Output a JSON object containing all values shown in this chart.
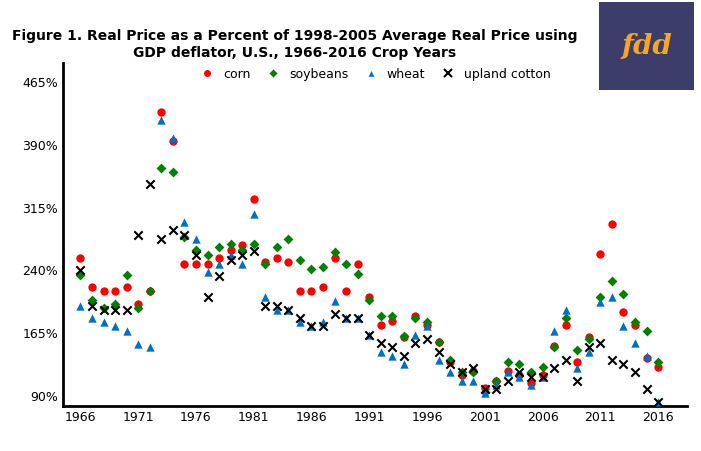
{
  "title": "Figure 1. Real Price as a Percent of 1998-2005 Average Real Price using\nGDP deflator, U.S., 1966-2016 Crop Years",
  "title_fontsize": 10,
  "fdd_box_color": "#3d3d6b",
  "fdd_text_color": "#f5a623",
  "corn_color": "#ff0000",
  "soybean_color": "#008000",
  "wheat_color": "#0070c0",
  "cotton_color": "#000000",
  "yticks": [
    90,
    165,
    240,
    315,
    390,
    465
  ],
  "ylim": [
    78,
    488
  ],
  "xlim": [
    1964.5,
    2018.5
  ],
  "xticks": [
    1966,
    1971,
    1976,
    1981,
    1986,
    1991,
    1996,
    2001,
    2006,
    2011,
    2016
  ],
  "corn": {
    "years": [
      1966,
      1967,
      1968,
      1969,
      1970,
      1971,
      1972,
      1973,
      1974,
      1975,
      1976,
      1977,
      1978,
      1979,
      1980,
      1981,
      1982,
      1983,
      1984,
      1985,
      1986,
      1987,
      1988,
      1989,
      1990,
      1991,
      1992,
      1993,
      1994,
      1995,
      1996,
      1997,
      1998,
      1999,
      2000,
      2001,
      2002,
      2003,
      2004,
      2005,
      2006,
      2007,
      2008,
      2009,
      2010,
      2011,
      2012,
      2013,
      2014,
      2015,
      2016
    ],
    "values": [
      255,
      220,
      215,
      215,
      220,
      200,
      215,
      430,
      395,
      248,
      248,
      248,
      255,
      265,
      270,
      325,
      250,
      255,
      250,
      215,
      215,
      220,
      255,
      215,
      248,
      208,
      175,
      180,
      160,
      185,
      175,
      155,
      130,
      115,
      120,
      100,
      108,
      120,
      115,
      105,
      115,
      150,
      175,
      130,
      160,
      260,
      295,
      190,
      175,
      135,
      125
    ]
  },
  "soybeans": {
    "years": [
      1966,
      1967,
      1968,
      1969,
      1970,
      1971,
      1972,
      1973,
      1974,
      1975,
      1976,
      1977,
      1978,
      1979,
      1980,
      1981,
      1982,
      1983,
      1984,
      1985,
      1986,
      1987,
      1988,
      1989,
      1990,
      1991,
      1992,
      1993,
      1994,
      1995,
      1996,
      1997,
      1998,
      1999,
      2000,
      2001,
      2002,
      2003,
      2004,
      2005,
      2006,
      2007,
      2008,
      2009,
      2010,
      2011,
      2012,
      2013,
      2014,
      2015,
      2016
    ],
    "values": [
      235,
      205,
      195,
      200,
      235,
      195,
      215,
      362,
      358,
      280,
      265,
      258,
      268,
      272,
      265,
      272,
      248,
      268,
      278,
      252,
      242,
      244,
      262,
      248,
      236,
      205,
      185,
      185,
      162,
      183,
      178,
      155,
      133,
      118,
      118,
      95,
      108,
      130,
      128,
      118,
      124,
      148,
      183,
      145,
      158,
      208,
      228,
      212,
      178,
      168,
      130
    ]
  },
  "wheat": {
    "years": [
      1966,
      1967,
      1968,
      1969,
      1970,
      1971,
      1972,
      1973,
      1974,
      1975,
      1976,
      1977,
      1978,
      1979,
      1980,
      1981,
      1982,
      1983,
      1984,
      1985,
      1986,
      1987,
      1988,
      1989,
      1990,
      1991,
      1992,
      1993,
      1994,
      1995,
      1996,
      1997,
      1998,
      1999,
      2000,
      2001,
      2002,
      2003,
      2004,
      2005,
      2006,
      2007,
      2008,
      2009,
      2010,
      2011,
      2012,
      2013,
      2014,
      2015,
      2016
    ],
    "values": [
      198,
      183,
      178,
      173,
      168,
      152,
      148,
      420,
      398,
      298,
      278,
      238,
      248,
      258,
      248,
      308,
      208,
      193,
      193,
      178,
      173,
      178,
      203,
      183,
      183,
      163,
      143,
      138,
      128,
      163,
      173,
      133,
      118,
      108,
      108,
      93,
      103,
      118,
      113,
      103,
      113,
      168,
      193,
      123,
      143,
      202,
      208,
      173,
      153,
      138,
      83
    ]
  },
  "cotton": {
    "years": [
      1966,
      1967,
      1968,
      1969,
      1970,
      1971,
      1972,
      1973,
      1974,
      1975,
      1976,
      1977,
      1978,
      1979,
      1980,
      1981,
      1982,
      1983,
      1984,
      1985,
      1986,
      1987,
      1988,
      1989,
      1990,
      1991,
      1992,
      1993,
      1994,
      1995,
      1996,
      1997,
      1998,
      1999,
      2000,
      2001,
      2002,
      2003,
      2004,
      2005,
      2006,
      2007,
      2008,
      2009,
      2010,
      2011,
      2012,
      2013,
      2014,
      2015,
      2016
    ],
    "values": [
      240,
      198,
      193,
      193,
      193,
      283,
      343,
      278,
      288,
      283,
      258,
      208,
      233,
      253,
      258,
      263,
      198,
      198,
      193,
      183,
      173,
      173,
      188,
      183,
      183,
      163,
      153,
      148,
      138,
      153,
      158,
      143,
      128,
      118,
      123,
      98,
      98,
      108,
      118,
      113,
      113,
      123,
      133,
      108,
      148,
      153,
      133,
      128,
      118,
      98,
      83
    ]
  }
}
